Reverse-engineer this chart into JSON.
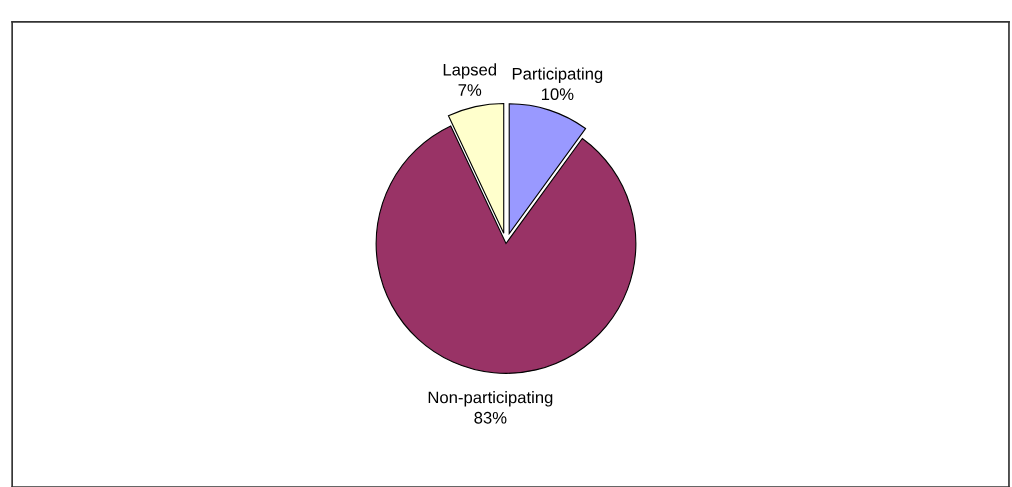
{
  "chart_data": {
    "type": "pie",
    "categories": [
      "Participating",
      "Non-participating",
      "Lapsed"
    ],
    "values": [
      10,
      83,
      7
    ],
    "value_labels": [
      "10%",
      "83%",
      "7%"
    ],
    "colors": [
      "#9999ff",
      "#993366",
      "#ffffcc"
    ]
  }
}
